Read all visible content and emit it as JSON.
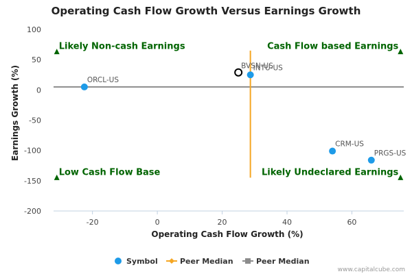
{
  "chart_data": {
    "type": "scatter",
    "title": "Operating Cash Flow Growth Versus Earnings Growth",
    "xlabel": "Operating Cash Flow Growth (%)",
    "ylabel": "Earnings Growth (%)",
    "xlim": [
      -32,
      76
    ],
    "ylim": [
      -200,
      100
    ],
    "x_ticks": [
      -20,
      0,
      20,
      40,
      60
    ],
    "y_ticks": [
      100,
      50,
      0,
      -50,
      -100,
      -150,
      -200
    ],
    "grid": false,
    "legend_position": "bottom",
    "series": [
      {
        "name": "Symbol",
        "color": "#1e9be8",
        "points": [
          {
            "label": "ORCL-US",
            "x": -22.5,
            "y": 5
          },
          {
            "label": "INTU-US",
            "x": 28.7,
            "y": 25
          },
          {
            "label": "CRM-US",
            "x": 54,
            "y": -101
          },
          {
            "label": "PRGS-US",
            "x": 66,
            "y": -116
          }
        ]
      }
    ],
    "highlight": {
      "label": "BVSN-US",
      "x": 25,
      "y": 29
    },
    "peer_median": {
      "x": 28.7,
      "y": 5
    },
    "peer_median_x_span": [
      -145,
      65
    ],
    "legend": [
      {
        "name": "Symbol",
        "color": "#1e9be8",
        "marker": "circle"
      },
      {
        "name": "Peer Median",
        "color": "#f5a623",
        "marker": "diamond"
      },
      {
        "name": "Peer Median",
        "color": "#8c8c8c",
        "marker": "square"
      }
    ],
    "quadrants": [
      {
        "label": "Likely Non-cash Earnings",
        "position": "top-left",
        "marker_x": -31,
        "marker_y": 63
      },
      {
        "label": "Cash Flow based Earnings",
        "position": "top-right",
        "marker_x": 75,
        "marker_y": 63
      },
      {
        "label": "Low Cash Flow Base",
        "position": "bottom-left",
        "marker_x": -31,
        "marker_y": -145
      },
      {
        "label": "Likely Undeclared Earnings",
        "position": "bottom-right",
        "marker_x": 75,
        "marker_y": -145
      }
    ],
    "credit": "www.capitalcube.com"
  },
  "colors": {
    "quadrant_text": "#006400",
    "median_vertical": "#f5a623",
    "median_horizontal": "#8c8c8c",
    "point": "#1e9be8"
  }
}
